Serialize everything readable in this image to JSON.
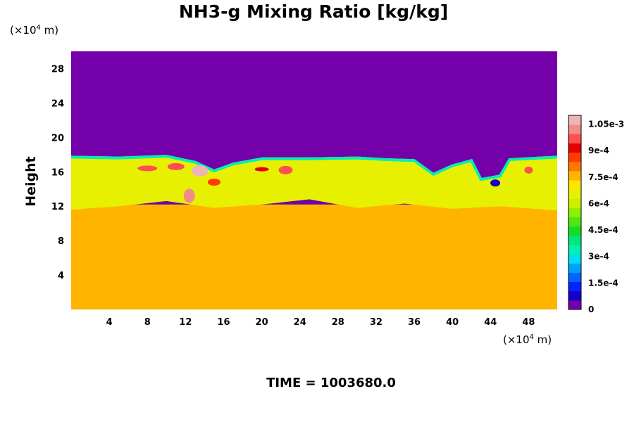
{
  "chart_data": {
    "type": "heatmap",
    "title": "NH3-g Mixing Ratio [kg/kg]",
    "xlabel": "",
    "ylabel": "Height",
    "x_unit": {
      "prefix": "(×10",
      "exponent": "4",
      "suffix": " m)"
    },
    "y_unit": {
      "prefix": "(×10",
      "exponent": "4",
      "suffix": " m)"
    },
    "xlim": [
      0,
      51
    ],
    "ylim": [
      0,
      30
    ],
    "x_ticks": [
      4,
      8,
      12,
      16,
      20,
      24,
      28,
      32,
      36,
      40,
      44,
      48
    ],
    "y_ticks": [
      4,
      8,
      12,
      16,
      20,
      24,
      28
    ],
    "colorbar": {
      "min": 0,
      "max": 0.0011,
      "tick_values": [
        0,
        0.00015,
        0.0003,
        0.00045,
        0.0006,
        0.00075,
        0.0009,
        0.00105
      ],
      "tick_labels": [
        "0",
        "1.5e-4",
        "3e-4",
        "4.5e-4",
        "6e-4",
        "7.5e-4",
        "9e-4",
        "1.05e-3"
      ],
      "colors": [
        "#7300a8",
        "#1400c8",
        "#0024ff",
        "#0064ff",
        "#00a0ff",
        "#00dcf0",
        "#00f0b4",
        "#00e678",
        "#14dc28",
        "#50e614",
        "#8cf000",
        "#c8f000",
        "#e6f000",
        "#ffe600",
        "#ffb400",
        "#ff7800",
        "#ff3c00",
        "#e60000",
        "#ff5050",
        "#f08c8c",
        "#f0b4b4"
      ]
    },
    "field_levels": {
      "upper_layer": 0,
      "lower_layer": 0.00077,
      "mixing_layer_typical": 0.00066
    },
    "annotation": "TIME = 1003680.0"
  }
}
